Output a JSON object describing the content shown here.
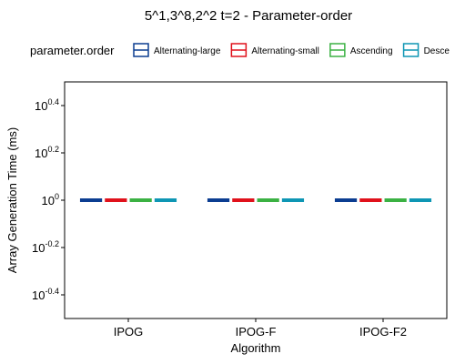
{
  "chart_data": {
    "type": "box",
    "title": "5^1,3^8,2^2 t=2 - Parameter-order",
    "xlabel": "Algorithm",
    "ylabel": "Array Generation Time (ms)",
    "y_scale": "log10",
    "y_log_range": [
      -0.5,
      0.5
    ],
    "y_ticks": [
      {
        "exp": -0.4,
        "base": "10",
        "sup": "-0.4"
      },
      {
        "exp": -0.2,
        "base": "10",
        "sup": "-0.2"
      },
      {
        "exp": 0,
        "base": "10",
        "sup": "0"
      },
      {
        "exp": 0.2,
        "base": "10",
        "sup": "0.2"
      },
      {
        "exp": 0.4,
        "base": "10",
        "sup": "0.4"
      }
    ],
    "categories": [
      "IPOG",
      "IPOG-F",
      "IPOG-F2"
    ],
    "legend": {
      "title": "parameter.order",
      "placement": "top",
      "entries": [
        "Alternating-large",
        "Alternating-small",
        "Ascending",
        "Descending"
      ],
      "visible_labels": [
        "Alternating-large",
        "Alternating-small",
        "Ascending",
        "Desce"
      ]
    },
    "series": [
      {
        "name": "Alternating-large",
        "color": "#0b3d91",
        "values": [
          1,
          1,
          1
        ]
      },
      {
        "name": "Alternating-small",
        "color": "#e0111b",
        "values": [
          1,
          1,
          1
        ]
      },
      {
        "name": "Ascending",
        "color": "#3bb143",
        "values": [
          1,
          1,
          1
        ]
      },
      {
        "name": "Descending",
        "color": "#0e96b4",
        "values": [
          1,
          1,
          1
        ]
      }
    ],
    "grid": false
  }
}
